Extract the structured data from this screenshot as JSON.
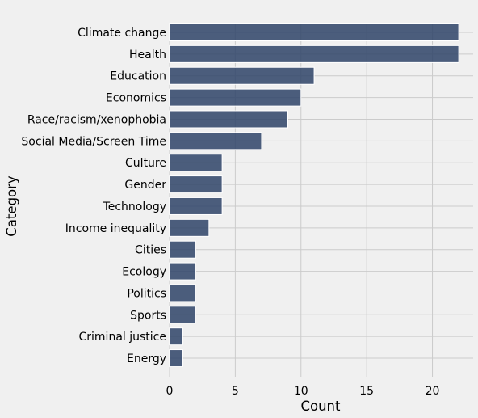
{
  "chart_data": {
    "type": "bar",
    "orientation": "horizontal",
    "categories": [
      "Climate change",
      "Health",
      "Education",
      "Economics",
      "Race/racism/xenophobia",
      "Social Media/Screen Time",
      "Culture",
      "Gender",
      "Technology",
      "Income inequality",
      "Cities",
      "Ecology",
      "Politics",
      "Sports",
      "Criminal justice",
      "Energy"
    ],
    "values": [
      22,
      22,
      11,
      10,
      9,
      7,
      4,
      4,
      4,
      3,
      2,
      2,
      2,
      2,
      1,
      1
    ],
    "xlabel": "Count",
    "ylabel": "Category",
    "xlim": [
      0,
      23.1
    ],
    "xticks": [
      0,
      5,
      10,
      15,
      20
    ],
    "grid": true,
    "bar_color": "#33486b",
    "background_color": "#f0f0f0",
    "grid_color": "#cbcbcb"
  }
}
